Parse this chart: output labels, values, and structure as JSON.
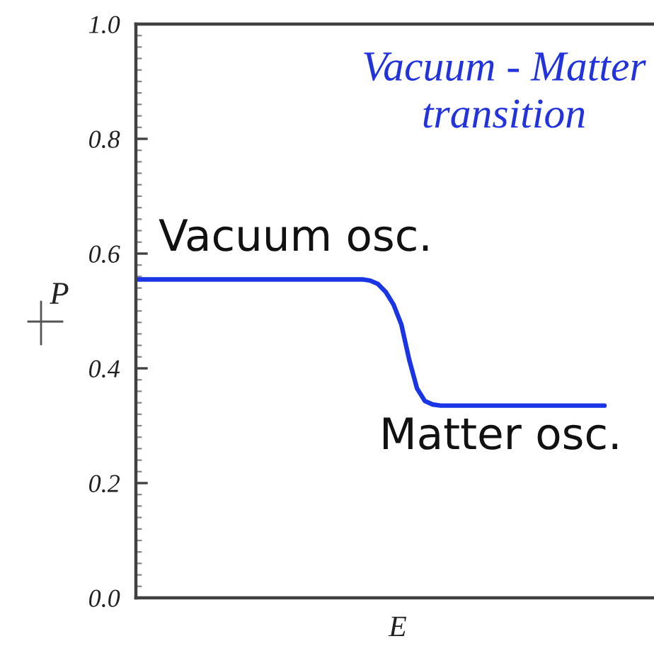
{
  "chart_data": {
    "type": "line",
    "xlabel": "E",
    "ylabel": "P",
    "annotations": [
      "Vacuum - Matter\ntransition",
      "Vacuum osc.",
      "Matter osc."
    ],
    "categories": [
      null,
      null,
      null,
      null,
      null,
      null,
      null,
      null,
      null,
      null,
      null,
      null,
      null,
      null,
      null,
      null,
      null,
      null,
      null,
      null,
      null,
      null,
      null,
      null,
      null,
      null,
      null,
      null,
      null,
      null,
      null,
      null,
      null,
      null,
      null,
      null,
      null,
      null,
      null,
      null,
      null,
      null,
      null,
      null,
      null,
      null,
      null,
      null,
      null,
      null,
      null,
      null,
      null,
      null,
      null,
      null,
      null,
      null,
      null,
      null,
      null
    ],
    "series": [
      {
        "color": "#1a35e6",
        "values": [
          0.555,
          0.555,
          0.555,
          0.555,
          0.555,
          0.555,
          0.555,
          0.555,
          0.555,
          0.555,
          0.555,
          0.555,
          0.555,
          0.555,
          0.555,
          0.555,
          0.555,
          0.555,
          0.555,
          0.555,
          0.555,
          0.555,
          0.555,
          0.555,
          0.555,
          0.555,
          0.555,
          0.555,
          0.555,
          0.555,
          0.553,
          0.547,
          0.533,
          0.511,
          0.476,
          0.415,
          0.365,
          0.343,
          0.337,
          0.335,
          0.335,
          0.335,
          0.335,
          0.335,
          0.335,
          0.335,
          0.335,
          0.335,
          0.335,
          0.335,
          0.335,
          0.335,
          0.335,
          0.335,
          0.335,
          0.335,
          0.335,
          0.335,
          0.335,
          0.335,
          0.335
        ]
      }
    ],
    "ylim": [
      0,
      1
    ],
    "yticks": [
      {
        "value": 0,
        "label": "0.0"
      },
      {
        "value": 0.02,
        "label": null
      },
      {
        "value": 0.04,
        "label": null
      },
      {
        "value": 0.06,
        "label": null
      },
      {
        "value": 0.08,
        "label": null
      },
      {
        "value": 0.1,
        "label": null
      },
      {
        "value": 0.12,
        "label": null
      },
      {
        "value": 0.14,
        "label": null
      },
      {
        "value": 0.16,
        "label": null
      },
      {
        "value": 0.18,
        "label": null
      },
      {
        "value": 0.2,
        "label": "0.2"
      },
      {
        "value": 0.22,
        "label": null
      },
      {
        "value": 0.24,
        "label": null
      },
      {
        "value": 0.26,
        "label": null
      },
      {
        "value": 0.28,
        "label": null
      },
      {
        "value": 0.3,
        "label": null
      },
      {
        "value": 0.32,
        "label": null
      },
      {
        "value": 0.34,
        "label": null
      },
      {
        "value": 0.36,
        "label": null
      },
      {
        "value": 0.38,
        "label": null
      },
      {
        "value": 0.4,
        "label": "0.4"
      },
      {
        "value": 0.42,
        "label": null
      },
      {
        "value": 0.44,
        "label": null
      },
      {
        "value": 0.46,
        "label": null
      },
      {
        "value": 0.48,
        "label": null
      },
      {
        "value": 0.5,
        "label": null
      },
      {
        "value": 0.52,
        "label": null
      },
      {
        "value": 0.54,
        "label": null
      },
      {
        "value": 0.56,
        "label": null
      },
      {
        "value": 0.58,
        "label": null
      },
      {
        "value": 0.6,
        "label": "0.6"
      },
      {
        "value": 0.62,
        "label": null
      },
      {
        "value": 0.64,
        "label": null
      },
      {
        "value": 0.66,
        "label": null
      },
      {
        "value": 0.68,
        "label": null
      },
      {
        "value": 0.7,
        "label": null
      },
      {
        "value": 0.72,
        "label": null
      },
      {
        "value": 0.74,
        "label": null
      },
      {
        "value": 0.76,
        "label": null
      },
      {
        "value": 0.78,
        "label": null
      },
      {
        "value": 0.8,
        "label": "0.8"
      },
      {
        "value": 0.82,
        "label": null
      },
      {
        "value": 0.84,
        "label": null
      },
      {
        "value": 0.86,
        "label": null
      },
      {
        "value": 0.88,
        "label": null
      },
      {
        "value": 0.9,
        "label": null
      },
      {
        "value": 0.92,
        "label": null
      },
      {
        "value": 0.94,
        "label": null
      },
      {
        "value": 0.96,
        "label": null
      },
      {
        "value": 0.98,
        "label": null
      },
      {
        "value": 1,
        "label": "1.0"
      }
    ],
    "tick_labels": "y"
  }
}
